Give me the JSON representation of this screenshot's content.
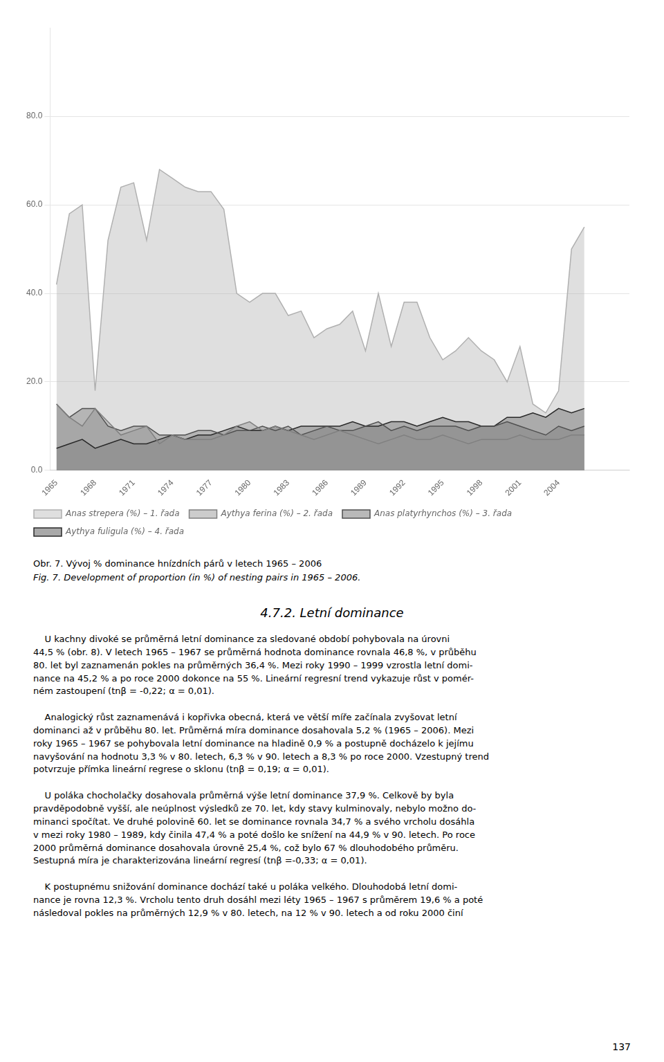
{
  "chart_data": {
    "type": "area",
    "title": "Obr. 7. Vývoj % dominance hnízdních párů v letech 1965 – 2006",
    "subtitle": "Fig. 7. Development of proportion (in %) of nesting pairs in 1965 – 2006.",
    "annotations": [
      "4.7.2. Letní dominance",
      "    U kachny divoké se průměrná letní dominance za sledované období pohybovala na úrovni\n44,5 % (obr. 8). V letech 1965 – 1967 se průměrná hodnota dominance rovnala 46,8 %, v průběhu\n80. let byl zaznamenán pokles na průměrných 36,4 %. Mezi roky 1990 – 1999 vzrostla letní domi-\nnance na 45,2 % a po roce 2000 dokonce na 55 %. Lineární regresní trend vykazuje růst v pomér-\nném zastoupení (tnβ = -0,22; α = 0,01).\n\n    Analogický růst zaznamenává i kopřivka obecná, která ve větší míře začínala zvyšovat letní\ndominanci až v průběhu 80. let. Průměrná míra dominance dosahovala 5,2 % (1965 – 2006). Mezi\nroky 1965 – 1967 se pohybovala letní dominance na hladině 0,9 % a postupně docházelo k jejímu\nnavyšování na hodnotu 3,3 % v 80. letech, 6,3 % v 90. letech a 8,3 % po roce 2000. Vzestupný trend\npotvrzuje přímka lineární regrese o sklonu (tnβ = 0,19; α = 0,01).\n\n    U poláka chocholačky dosahovala průměrná výše letní dominance 37,9 %. Celkově by byla\npravděpodobně vyšší, ale neúplnost výsledků ze 70. let, kdy stavy kulminovaly, nebylo možno do-\nminanci spočítat. Ve druhé polovině 60. let se dominance rovnala 34,7 % a svého vrcholu dosáhla\nv mezi roky 1980 – 1989, kdy činila 47,4 % a poté došlo ke snížení na 44,9 % v 90. letech. Po roce\n2000 průměrná dominance dosahovala úrovně 25,4 %, což bylo 67 % dlouhodobého průměru.\nSestupná míra je charakterizována lineární regresí (tnβ =-0,33; α = 0,01).\n\n    K postupnému snižování dominance dochází také u poláka velkého. Dlouhodobá letní domi-\nnance je rovna 12,3 %. Vrcholu tento druh dosáhl mezi léty 1965 – 1967 s průměrem 19,6 % a poté\nnásledoval pokles na průměrných 12,9 % v 80. letech, na 12 % v 90. letech a od roku 2000 činí",
      "137"
    ],
    "x": [
      1965,
      1966,
      1967,
      1968,
      1969,
      1970,
      1971,
      1972,
      1973,
      1974,
      1975,
      1976,
      1977,
      1978,
      1979,
      1980,
      1981,
      1982,
      1983,
      1984,
      1985,
      1986,
      1987,
      1988,
      1989,
      1990,
      1991,
      1992,
      1993,
      1994,
      1995,
      1996,
      1997,
      1998,
      1999,
      2000,
      2001,
      2002,
      2003,
      2004,
      2005,
      2006
    ],
    "series": [
      {
        "name": "Anas strepera (%) – 1. řada",
        "color": "#b0b0b0",
        "values": [
          42,
          58,
          60,
          18,
          52,
          64,
          65,
          52,
          68,
          66,
          64,
          63,
          63,
          59,
          40,
          38,
          40,
          40,
          35,
          36,
          30,
          32,
          33,
          36,
          27,
          40,
          28,
          38,
          38,
          30,
          25,
          27,
          30,
          27,
          25,
          20,
          28,
          15,
          13,
          18,
          50,
          55
        ]
      },
      {
        "name": "Aythya ferina (%) – 2. řada",
        "color": "#808080",
        "values": [
          15,
          12,
          10,
          14,
          11,
          8,
          9,
          10,
          6,
          8,
          7,
          7,
          7,
          8,
          10,
          11,
          9,
          10,
          9,
          8,
          7,
          8,
          9,
          8,
          7,
          6,
          7,
          8,
          7,
          7,
          8,
          7,
          6,
          7,
          7,
          7,
          8,
          7,
          7,
          7,
          8,
          8
        ]
      },
      {
        "name": "Anas platyrhynchos (%) – 3. řada",
        "color": "#505050",
        "values": [
          15,
          12,
          14,
          14,
          10,
          9,
          10,
          10,
          8,
          8,
          8,
          9,
          9,
          8,
          9,
          9,
          10,
          9,
          10,
          8,
          9,
          10,
          9,
          9,
          10,
          11,
          9,
          10,
          9,
          10,
          10,
          10,
          9,
          10,
          10,
          11,
          10,
          9,
          8,
          10,
          9,
          10
        ]
      },
      {
        "name": "Aythya fuligula (%) – 4. řada",
        "color": "#282828",
        "values": [
          5,
          6,
          7,
          5,
          6,
          7,
          6,
          6,
          7,
          8,
          7,
          8,
          8,
          9,
          10,
          9,
          9,
          10,
          9,
          10,
          10,
          10,
          10,
          11,
          10,
          10,
          11,
          11,
          10,
          11,
          12,
          11,
          11,
          10,
          10,
          12,
          12,
          13,
          12,
          14,
          13,
          14
        ]
      }
    ],
    "xlim": [
      1964.5,
      2009.5
    ],
    "xticks": [
      1965,
      1968,
      1971,
      1974,
      1977,
      1980,
      1983,
      1986,
      1989,
      1992,
      1995,
      1998,
      2001,
      2004
    ],
    "ylim": [
      0,
      100
    ],
    "yticks": [
      {
        "value": 0,
        "label": "0.0"
      },
      {
        "value": 20,
        "label": "20.0"
      },
      {
        "value": 40,
        "label": "40.0"
      },
      {
        "value": 60,
        "label": "60.0"
      },
      {
        "value": 80,
        "label": "80.0"
      }
    ],
    "grid": "y",
    "legend": "bottom left"
  }
}
